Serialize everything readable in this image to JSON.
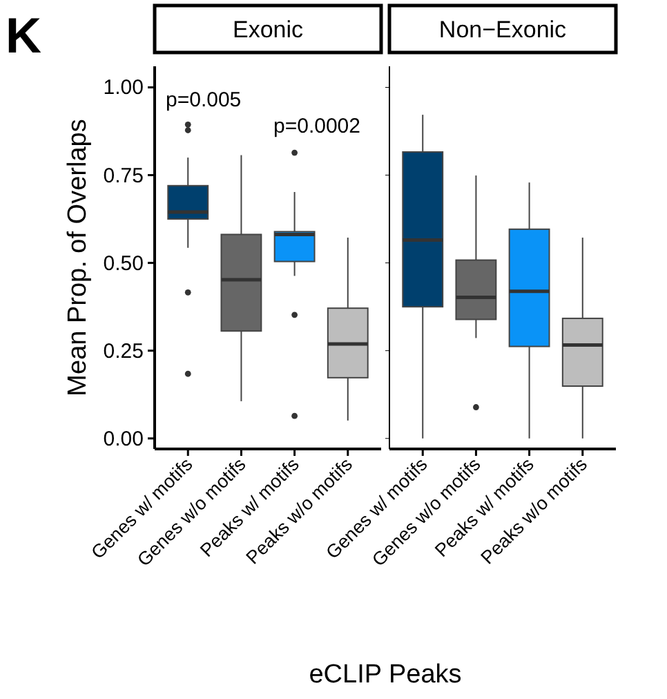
{
  "chart_data": [
    {
      "type": "box",
      "title": "Exonic",
      "ylabel": "Mean Prop. of Overlaps",
      "xlabel": "eCLIP Peaks",
      "categories": [
        "Genes w/ motifs",
        "Genes w/o motifs",
        "Peaks w/ motifs",
        "Peaks w/o motifs"
      ],
      "colors": [
        "#00406e",
        "#666666",
        "#0a93f7",
        "#bdbdbd"
      ],
      "boxes": [
        {
          "low": 0.543,
          "q1": 0.625,
          "median": 0.645,
          "q3": 0.72,
          "high": 0.8,
          "outliers": [
            0.894,
            0.878,
            0.416,
            0.184
          ]
        },
        {
          "low": 0.106,
          "q1": 0.306,
          "median": 0.452,
          "q3": 0.581,
          "high": 0.807
        },
        {
          "low": 0.463,
          "q1": 0.504,
          "median": 0.581,
          "q3": 0.589,
          "high": 0.702,
          "outliers": [
            0.814,
            0.352,
            0.064
          ]
        },
        {
          "low": 0.051,
          "q1": 0.173,
          "median": 0.269,
          "q3": 0.371,
          "high": 0.572
        }
      ],
      "ylim": [
        -0.03,
        1.06
      ],
      "yticks": [
        {
          "value": 0,
          "label": "0.00"
        },
        {
          "value": 0.25,
          "label": "0.25"
        },
        {
          "value": 0.5,
          "label": "0.50"
        },
        {
          "value": 0.75,
          "label": "0.75"
        },
        {
          "value": 1,
          "label": "1.00"
        }
      ],
      "annotations": [
        "K",
        "p=0.005",
        "p=0.0002"
      ],
      "grid": false
    },
    {
      "type": "box",
      "title": "Non−Exonic",
      "categories": [
        "Genes w/ motifs",
        "Genes w/o motifs",
        "Peaks w/ motifs",
        "Peaks w/o motifs"
      ],
      "colors": [
        "#00406e",
        "#666666",
        "#0a93f7",
        "#bdbdbd"
      ],
      "boxes": [
        {
          "low": 0,
          "q1": 0.375,
          "median": 0.565,
          "q3": 0.816,
          "high": 0.922
        },
        {
          "low": 0.286,
          "q1": 0.339,
          "median": 0.402,
          "q3": 0.508,
          "high": 0.749,
          "outliers": [
            0.089
          ]
        },
        {
          "low": 0,
          "q1": 0.262,
          "median": 0.419,
          "q3": 0.596,
          "high": 0.729
        },
        {
          "low": 0,
          "q1": 0.149,
          "median": 0.266,
          "q3": 0.342,
          "high": 0.572
        }
      ],
      "ylim": [
        -0.03,
        1.06
      ],
      "yticks": [
        {
          "value": 0,
          "label": null
        },
        {
          "value": 0.25,
          "label": null
        },
        {
          "value": 0.5,
          "label": null
        },
        {
          "value": 0.75,
          "label": null
        },
        {
          "value": 1,
          "label": null
        }
      ],
      "tick_labels": "x",
      "grid": false
    }
  ]
}
